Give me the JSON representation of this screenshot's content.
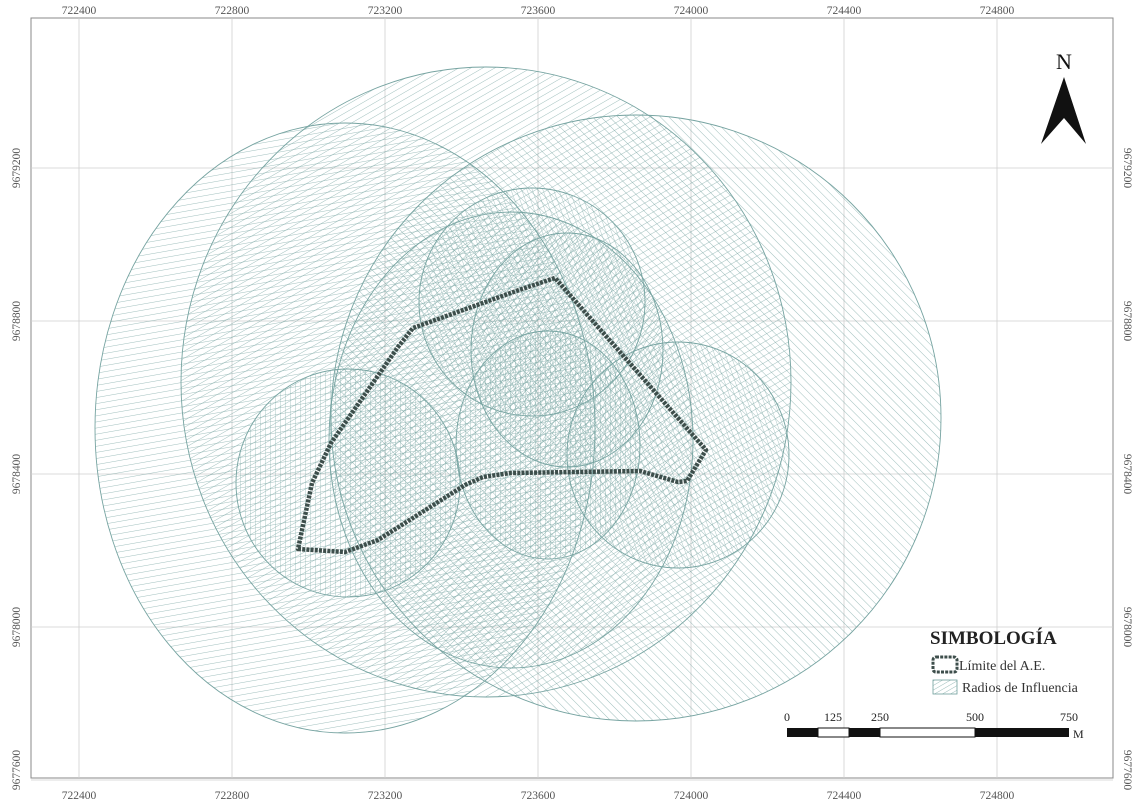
{
  "map": {
    "grid_x_labels": [
      "722400",
      "722800",
      "723200",
      "723600",
      "724000",
      "724400",
      "724800"
    ],
    "grid_y_labels": [
      "9679200",
      "9678800",
      "9678400",
      "9678000",
      "9677600"
    ],
    "north_label": "N",
    "legend": {
      "title": "SIMBOLOGÍA",
      "items": [
        {
          "label": "Límite del A.E.",
          "symbol": "dashed-boundary",
          "color": "#3d4e4b"
        },
        {
          "label": "Radios de Influencia",
          "symbol": "hatched-buffer",
          "color": "#6f9f9c"
        }
      ]
    },
    "scale_bar": {
      "labels": [
        "0",
        "125",
        "250",
        "500",
        "750"
      ],
      "unit": "M"
    },
    "colors": {
      "hatch": "#6f9f9c",
      "boundary": "#3d4e4b",
      "grid": "#cfcfcf"
    }
  }
}
